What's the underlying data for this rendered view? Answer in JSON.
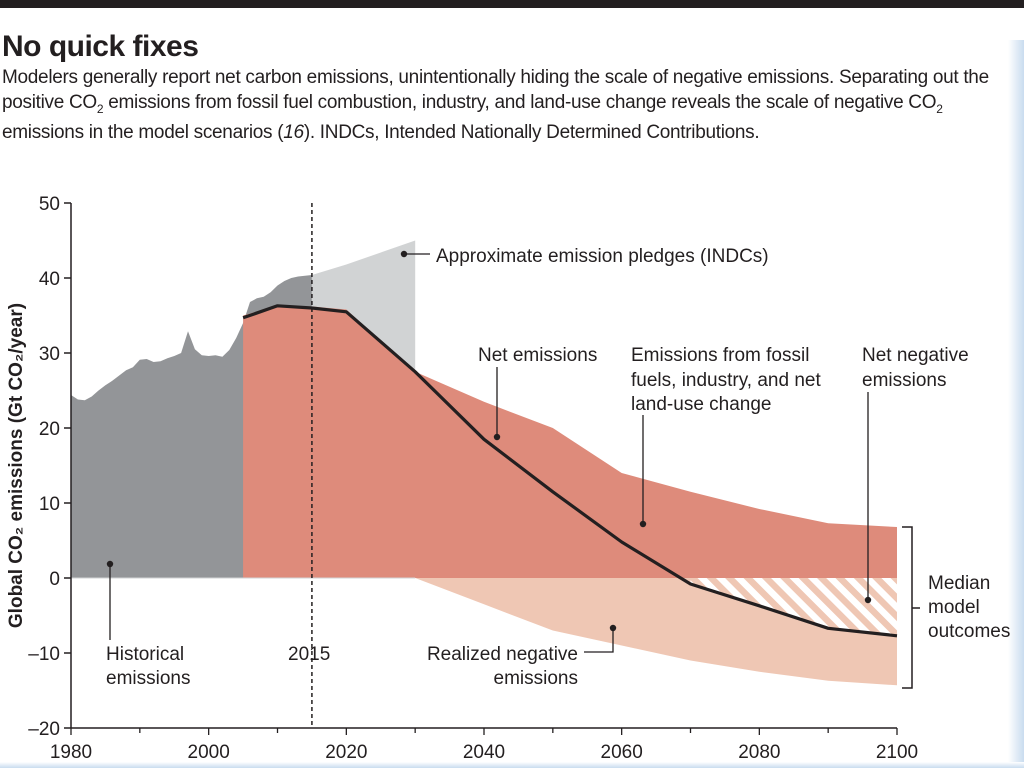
{
  "header": {
    "title": "No quick fixes",
    "caption_1": "Modelers generally report net carbon emissions, unintentionally hiding the scale of negative emissions. Separating out the positive CO",
    "caption_sub1": "2",
    "caption_2": " emissions from fossil fuel combustion, industry, and land-use change reveals the scale of negative CO",
    "caption_sub2": "2",
    "caption_3": " emissions in the model scenarios (",
    "caption_ref": "16",
    "caption_4": "). INDCs, Intended Nationally Determined Contributions."
  },
  "chart_data": {
    "type": "area",
    "xlabel": "",
    "ylabel": "Global CO₂ emissions (Gt CO₂/year)",
    "xlim": [
      1980,
      2100
    ],
    "ylim": [
      -20,
      50
    ],
    "x_ticks": [
      "1980",
      "2000",
      "2020",
      "2040",
      "2060",
      "2080",
      "2100"
    ],
    "y_ticks": [
      "50",
      "40",
      "30",
      "20",
      "10",
      "0",
      "–10",
      "–20"
    ],
    "reference_line": {
      "x": 2015,
      "label": "2015"
    },
    "colors": {
      "historical": "#939598",
      "pledges": "#d1d3d4",
      "positive": "#de8b7b",
      "negative": "#efc7b4",
      "net_line": "#231f20",
      "hatch": "#efc7b4"
    },
    "series": [
      {
        "name": "Historical emissions",
        "x": [
          1980,
          1981,
          1982,
          1983,
          1984,
          1985,
          1986,
          1987,
          1988,
          1989,
          1990,
          1991,
          1992,
          1993,
          1994,
          1995,
          1996,
          1997,
          1998,
          1999,
          2000,
          2001,
          2002,
          2003,
          2004,
          2005,
          2006,
          2007,
          2008,
          2009,
          2010,
          2011,
          2012,
          2013,
          2014,
          2015
        ],
        "values": [
          24.4,
          23.8,
          23.7,
          24.2,
          25.0,
          25.7,
          26.3,
          27.0,
          27.7,
          28.1,
          29.1,
          29.2,
          28.8,
          28.9,
          29.3,
          29.6,
          30.0,
          32.9,
          30.5,
          29.7,
          29.6,
          29.7,
          29.5,
          30.4,
          32.0,
          34.0,
          36.8,
          37.3,
          37.5,
          38.1,
          39.0,
          39.6,
          40.0,
          40.2,
          40.3,
          40.4
        ]
      },
      {
        "name": "Approximate emission pledges (INDCs)",
        "x": [
          2015,
          2020,
          2025,
          2030
        ],
        "upper": [
          40.4,
          41.8,
          43.4,
          45.0
        ],
        "lower": [
          36.0,
          35.5,
          31.0,
          27.0
        ]
      },
      {
        "name": "Emissions from fossil fuels, industry, and net land-use change",
        "x": [
          2005,
          2010,
          2015,
          2020,
          2030,
          2040,
          2050,
          2060,
          2070,
          2080,
          2090,
          2100
        ],
        "values": [
          35.0,
          36.3,
          36.2,
          35.8,
          27.5,
          23.5,
          20.0,
          14.0,
          11.5,
          9.2,
          7.3,
          6.8
        ]
      },
      {
        "name": "Realized negative emissions",
        "x": [
          2005,
          2020,
          2030,
          2040,
          2050,
          2060,
          2070,
          2080,
          2090,
          2100
        ],
        "values": [
          0,
          0,
          0,
          -3.5,
          -7.0,
          -9.0,
          -11.0,
          -12.5,
          -13.7,
          -14.3
        ]
      },
      {
        "name": "Net emissions",
        "x": [
          2005,
          2010,
          2015,
          2020,
          2030,
          2040,
          2050,
          2060,
          2070,
          2080,
          2090,
          2100
        ],
        "values": [
          34.7,
          36.3,
          36.0,
          35.5,
          27.5,
          18.5,
          11.5,
          4.8,
          -0.8,
          -3.7,
          -6.7,
          -7.7
        ]
      }
    ],
    "net_negative_emissions": {
      "x_start": 2070,
      "x_end": 2100
    },
    "annotations": {
      "historical": "Historical emissions",
      "pledges": "Approximate emission pledges (INDCs)",
      "net": "Net emissions",
      "fossil": "Emissions from fossil fuels, industry, and net land-use change",
      "net_negative": "Net negative emissions",
      "realized_negative": "Realized negative emissions",
      "median": "Median model outcomes"
    }
  },
  "labels": {
    "historical_l1": "Historical",
    "historical_l2": "emissions",
    "pledges": "Approximate emission pledges (INDCs)",
    "net": "Net emissions",
    "fossil_l1": "Emissions from fossil",
    "fossil_l2": "fuels, industry, and net",
    "fossil_l3": "land-use change",
    "netneg_l1": "Net negative",
    "netneg_l2": "emissions",
    "realized_l1": "Realized negative",
    "realized_l2": "emissions",
    "median_l1": "Median",
    "median_l2": "model",
    "median_l3": "outcomes",
    "year_2015": "2015"
  }
}
